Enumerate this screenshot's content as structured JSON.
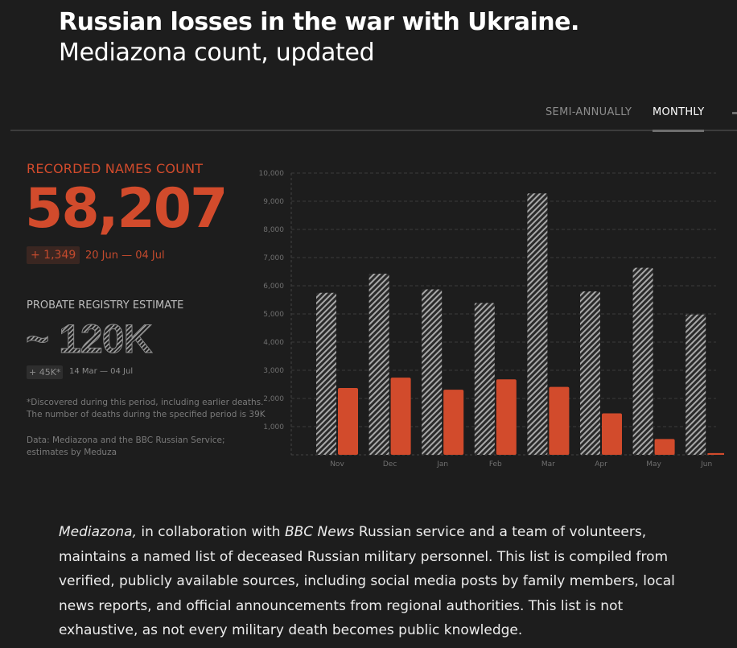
{
  "header": {
    "title": "Russian losses in the war with Ukraine.",
    "subtitle": "Mediazona count, updated"
  },
  "tabs": [
    {
      "label": "SEMI-ANNUALLY",
      "active": false
    },
    {
      "label": "MONTHLY",
      "active": true
    }
  ],
  "stats": {
    "recorded_label": "RECORDED NAMES COUNT",
    "recorded_count": "58,207",
    "recorded_delta": "+ 1,349",
    "recorded_range": "20 Jun — 04 Jul",
    "probate_label": "PROBATE REGISTRY ESTIMATE",
    "probate_estimate": "~ 120K",
    "probate_delta": "+ 45K*",
    "probate_range": "14 Mar — 04 Jul",
    "footnote": "*Discovered during this period, including earlier deaths. The number of deaths during the specified period is 39K",
    "source": "Data: Mediazona and the BBC Russian Service; estimates by Meduza"
  },
  "colors": {
    "accent": "#d24b2c",
    "background": "#1d1d1d",
    "estimate_hatch": "#a8a8a8"
  },
  "chart_data": {
    "type": "bar",
    "categories": [
      "Nov",
      "Dec",
      "Jan",
      "Feb",
      "Mar",
      "Apr",
      "May",
      "Jun"
    ],
    "series": [
      {
        "name": "",
        "pattern": "hatched",
        "values": [
          5750,
          6430,
          5870,
          5390,
          9280,
          5800,
          6640,
          4980
        ]
      },
      {
        "name": "",
        "pattern": "solid",
        "values": [
          2370,
          2740,
          2310,
          2680,
          2410,
          1470,
          560,
          60
        ]
      }
    ],
    "yticks": [
      "1,000",
      "2,000",
      "3,000",
      "4,000",
      "5,000",
      "6,000",
      "7,000",
      "8,000",
      "9,000",
      "10,000"
    ],
    "ylim": [
      0,
      10000
    ],
    "grid": true
  },
  "body": {
    "outlet1": "Mediazona,",
    "t1": " in collaboration with ",
    "outlet2": "BBC News",
    "t2": " Russian service and a team of volunteers, maintains a named list of deceased Russian military personnel. This list is compiled from verified, publicly available sources, including social media posts by family members, local news reports, and official announcements from regional authorities. This list is not exhaustive, as not every military death becomes public knowledge."
  }
}
